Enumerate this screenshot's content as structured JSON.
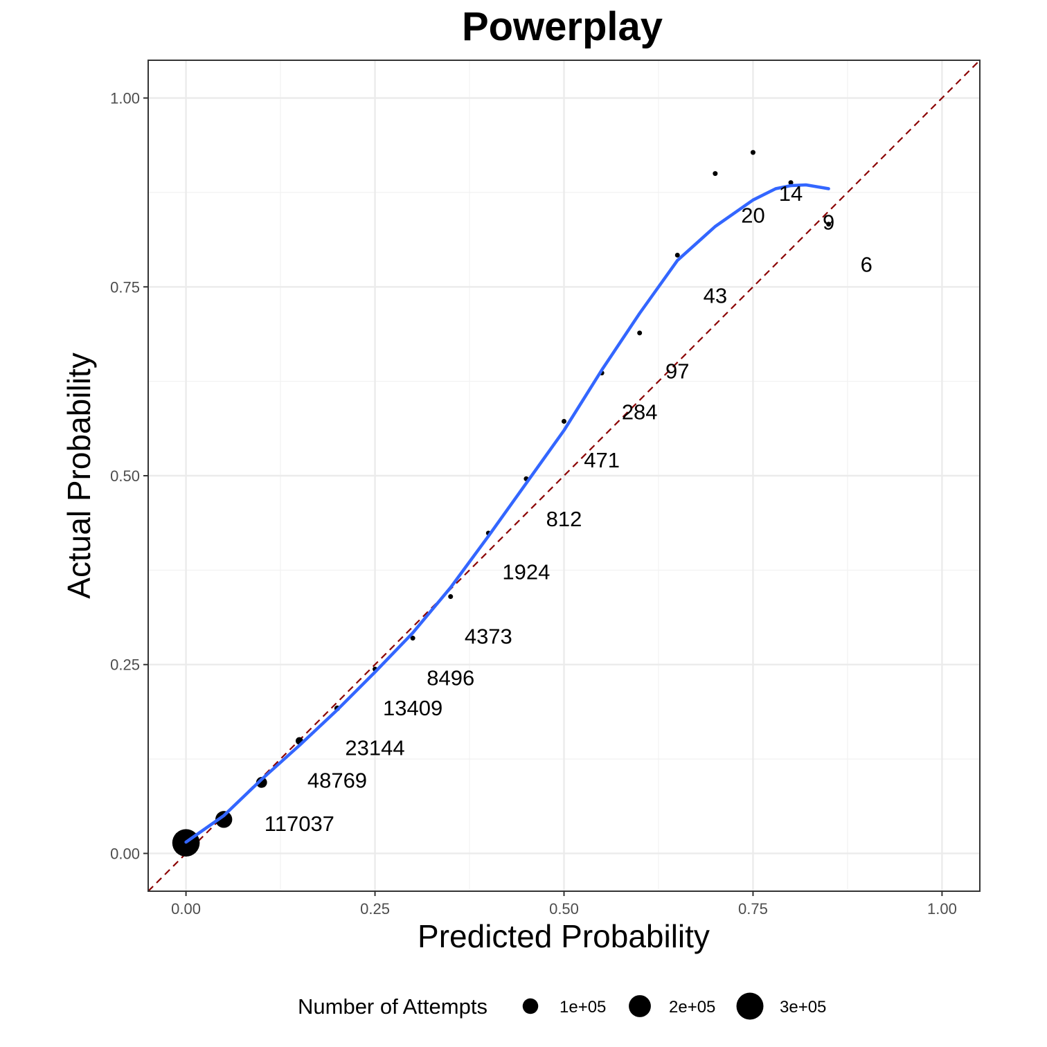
{
  "chart_data": {
    "type": "scatter",
    "title": "Powerplay",
    "xlabel": "Predicted Probability",
    "ylabel": "Actual Probability",
    "xlim": [
      -0.05,
      1.05
    ],
    "ylim": [
      -0.05,
      1.05
    ],
    "x_ticks": [
      0,
      0.25,
      0.5,
      0.75,
      1
    ],
    "x_tick_labels": [
      "0.00",
      "0.25",
      "0.50",
      "0.75",
      "1.00"
    ],
    "y_ticks": [
      0,
      0.25,
      0.5,
      0.75,
      1
    ],
    "y_tick_labels": [
      "0.00",
      "0.25",
      "0.50",
      "0.75",
      "1.00"
    ],
    "grid": true,
    "reference_line": {
      "slope": 1,
      "intercept": 0,
      "color": "#8B0000",
      "style": "dashed"
    },
    "points": [
      {
        "x": 0.0,
        "y": 0.014,
        "attempts": 310000
      },
      {
        "x": 0.05,
        "y": 0.045,
        "attempts": 117037
      },
      {
        "x": 0.1,
        "y": 0.094,
        "attempts": 48769
      },
      {
        "x": 0.15,
        "y": 0.149,
        "attempts": 23144
      },
      {
        "x": 0.2,
        "y": 0.192,
        "attempts": 13409
      },
      {
        "x": 0.25,
        "y": 0.244,
        "attempts": 8496
      },
      {
        "x": 0.3,
        "y": 0.285,
        "attempts": 4373
      },
      {
        "x": 0.35,
        "y": 0.34,
        "attempts": 1924
      },
      {
        "x": 0.4,
        "y": 0.424,
        "attempts": 812
      },
      {
        "x": 0.45,
        "y": 0.496,
        "attempts": 471
      },
      {
        "x": 0.5,
        "y": 0.572,
        "attempts": 284
      },
      {
        "x": 0.55,
        "y": 0.636,
        "attempts": 97
      },
      {
        "x": 0.6,
        "y": 0.689,
        "attempts": 43
      },
      {
        "x": 0.65,
        "y": 0.792,
        "attempts": 20
      },
      {
        "x": 0.7,
        "y": 0.9,
        "attempts": 14
      },
      {
        "x": 0.75,
        "y": 0.928,
        "attempts": 9
      },
      {
        "x": 0.8,
        "y": 0.888,
        "attempts": 6
      },
      {
        "x": 0.85,
        "y": 0.833,
        "attempts": 6000
      }
    ],
    "annotations": [
      {
        "text": "117037",
        "x": 0.15,
        "y": 0.04
      },
      {
        "text": "48769",
        "x": 0.2,
        "y": 0.097
      },
      {
        "text": "23144",
        "x": 0.25,
        "y": 0.14
      },
      {
        "text": "13409",
        "x": 0.3,
        "y": 0.193
      },
      {
        "text": "8496",
        "x": 0.35,
        "y": 0.233
      },
      {
        "text": "4373",
        "x": 0.4,
        "y": 0.288
      },
      {
        "text": "1924",
        "x": 0.45,
        "y": 0.373
      },
      {
        "text": "812",
        "x": 0.5,
        "y": 0.443
      },
      {
        "text": "471",
        "x": 0.55,
        "y": 0.521
      },
      {
        "text": "284",
        "x": 0.6,
        "y": 0.585
      },
      {
        "text": "97",
        "x": 0.65,
        "y": 0.639
      },
      {
        "text": "43",
        "x": 0.7,
        "y": 0.739
      },
      {
        "text": "20",
        "x": 0.75,
        "y": 0.845
      },
      {
        "text": "14",
        "x": 0.8,
        "y": 0.874
      },
      {
        "text": "9",
        "x": 0.85,
        "y": 0.836
      },
      {
        "text": "6",
        "x": 0.9,
        "y": 0.78
      }
    ],
    "smooth_line": {
      "color": "#3366FF",
      "x": [
        0.0,
        0.05,
        0.1,
        0.15,
        0.2,
        0.25,
        0.3,
        0.35,
        0.4,
        0.45,
        0.5,
        0.55,
        0.6,
        0.65,
        0.7,
        0.75,
        0.78,
        0.8,
        0.82,
        0.85
      ],
      "y": [
        0.015,
        0.05,
        0.098,
        0.143,
        0.19,
        0.24,
        0.292,
        0.352,
        0.42,
        0.49,
        0.56,
        0.64,
        0.715,
        0.785,
        0.83,
        0.865,
        0.88,
        0.884,
        0.885,
        0.88
      ]
    },
    "size_legend": {
      "title": "Number of Attempts",
      "entries": [
        {
          "label": "1e+05",
          "value": 100000
        },
        {
          "label": "2e+05",
          "value": 200000
        },
        {
          "label": "3e+05",
          "value": 300000
        }
      ]
    }
  },
  "colors": {
    "points": "#000000",
    "smooth": "#3366FF",
    "reference": "#8B0000",
    "grid_major": "#EBEBEB",
    "grid_minor": "#F2F2F2",
    "panel_border": "#333333"
  }
}
